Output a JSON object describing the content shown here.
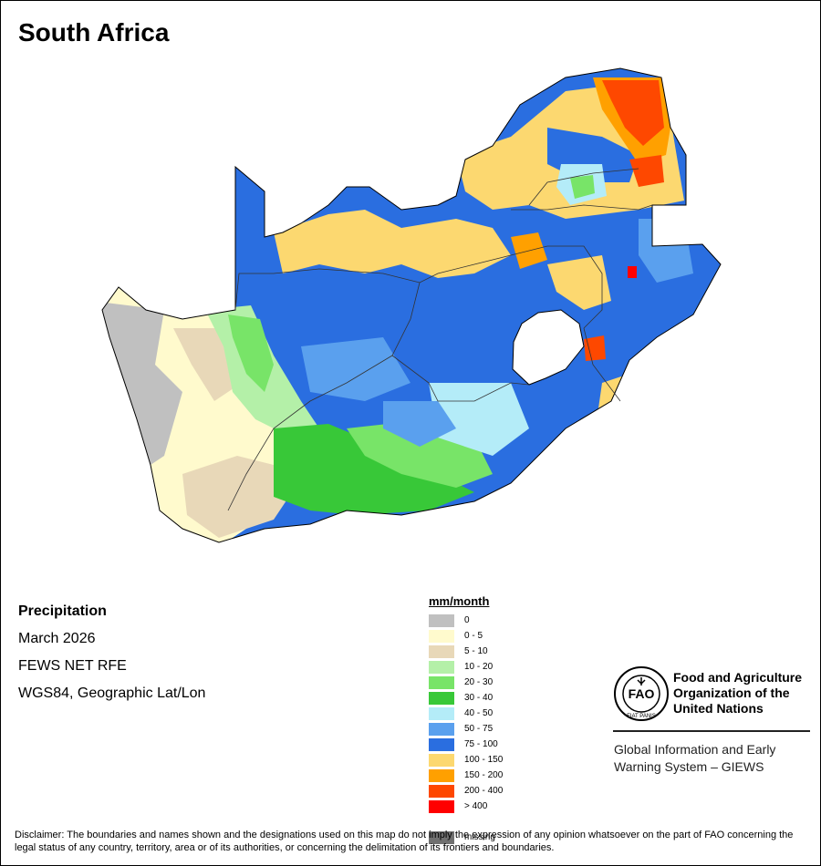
{
  "title": "South Africa",
  "map_info": {
    "variable": "Precipitation",
    "period": "March 2026",
    "source": "FEWS NET RFE",
    "projection": "WGS84, Geographic Lat/Lon"
  },
  "legend": {
    "unit": "mm/month",
    "classes": [
      {
        "label": "0",
        "color": "#c0c0c0"
      },
      {
        "label": "0 - 5",
        "color": "#fffacd"
      },
      {
        "label": "5 - 10",
        "color": "#e8d8b8"
      },
      {
        "label": "10 - 20",
        "color": "#b4f0a8"
      },
      {
        "label": "20 - 30",
        "color": "#78e468"
      },
      {
        "label": "30 - 40",
        "color": "#38c838"
      },
      {
        "label": "40 - 50",
        "color": "#b4ecf8"
      },
      {
        "label": "50 - 75",
        "color": "#5aa0ee"
      },
      {
        "label": "75 - 100",
        "color": "#2a6ee0"
      },
      {
        "label": "100 - 150",
        "color": "#fcd870"
      },
      {
        "label": "150 - 200",
        "color": "#ffa000"
      },
      {
        "label": "200 - 400",
        "color": "#fe4800"
      },
      {
        "label": "> 400",
        "color": "#ff0000"
      }
    ],
    "missing": {
      "label": "missing",
      "color": "#707070"
    }
  },
  "organization": {
    "logo_text": "FIAT PANIS",
    "name_lines": [
      "Food and Agriculture",
      "Organization of the",
      "United Nations"
    ],
    "system_lines": [
      "Global Information and Early",
      "Warning System – GIEWS"
    ]
  },
  "disclaimer": "Disclaimer: The boundaries and names shown and the designations used on this map do not imply the expression of any opinion whatsoever on the part of FAO concerning the legal status of any country, territory, area or of its authorities, or concerning the delimitation of its frontiers and boundaries."
}
